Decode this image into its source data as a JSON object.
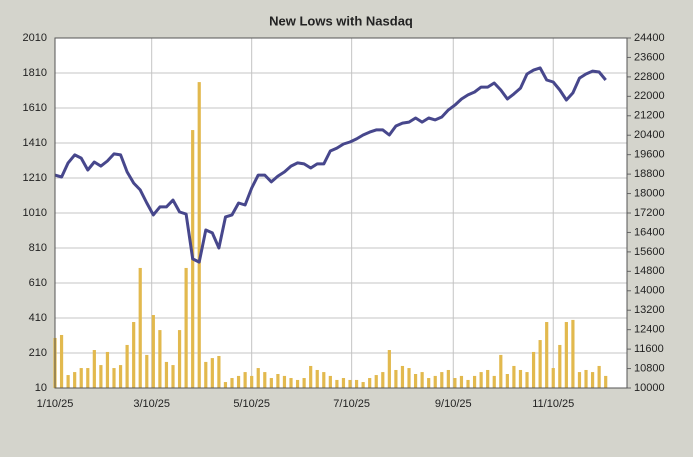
{
  "chart_data": {
    "type": "combo",
    "title": "New Lows with Nasdaq",
    "x": [
      "2025-01-10",
      "2025-01-14",
      "2025-01-18",
      "2025-01-22",
      "2025-01-26",
      "2025-01-30",
      "2025-02-03",
      "2025-02-07",
      "2025-02-11",
      "2025-02-15",
      "2025-02-19",
      "2025-02-23",
      "2025-02-27",
      "2025-03-03",
      "2025-03-07",
      "2025-03-11",
      "2025-03-15",
      "2025-03-19",
      "2025-03-23",
      "2025-03-27",
      "2025-03-31",
      "2025-04-04",
      "2025-04-08",
      "2025-04-12",
      "2025-04-16",
      "2025-04-20",
      "2025-04-24",
      "2025-04-28",
      "2025-05-02",
      "2025-05-06",
      "2025-05-10",
      "2025-05-14",
      "2025-05-18",
      "2025-05-22",
      "2025-05-26",
      "2025-05-30",
      "2025-06-03",
      "2025-06-07",
      "2025-06-11",
      "2025-06-15",
      "2025-06-19",
      "2025-06-23",
      "2025-06-27",
      "2025-07-01",
      "2025-07-05",
      "2025-07-09",
      "2025-07-13",
      "2025-07-17",
      "2025-07-21",
      "2025-07-25",
      "2025-07-29",
      "2025-08-02",
      "2025-08-06",
      "2025-08-10",
      "2025-08-14",
      "2025-08-18",
      "2025-08-22",
      "2025-08-26",
      "2025-08-30",
      "2025-09-03",
      "2025-09-07",
      "2025-09-11",
      "2025-09-15",
      "2025-09-19",
      "2025-09-23",
      "2025-09-27",
      "2025-10-01",
      "2025-10-05",
      "2025-10-09",
      "2025-10-13",
      "2025-10-17",
      "2025-10-21",
      "2025-10-25",
      "2025-10-29",
      "2025-11-02",
      "2025-11-06",
      "2025-11-10",
      "2025-11-14",
      "2025-11-18",
      "2025-11-22",
      "2025-11-26",
      "2025-11-30",
      "2025-12-04",
      "2025-12-08",
      "2025-12-12"
    ],
    "series": [
      {
        "type": "bar",
        "color": "#e2b94e",
        "values": [
          296,
          313,
          84,
          101,
          124,
          124,
          227,
          141,
          216,
          124,
          141,
          256,
          387,
          696,
          199,
          427,
          341,
          159,
          141,
          341,
          696,
          1484,
          1758,
          159,
          181,
          193,
          44,
          67,
          79,
          101,
          79,
          124,
          101,
          67,
          90,
          79,
          67,
          56,
          67,
          136,
          113,
          101,
          79,
          56,
          67,
          56,
          56,
          44,
          67,
          84,
          101,
          227,
          113,
          136,
          124,
          90,
          101,
          67,
          79,
          101,
          113,
          67,
          79,
          56,
          79,
          101,
          113,
          79,
          199,
          90,
          136,
          113,
          101,
          216,
          284,
          387,
          124,
          256,
          387,
          399,
          101,
          113,
          101,
          136,
          79
        ]
      },
      {
        "type": "line",
        "axis": "y2",
        "color": "#47478c",
        "values": [
          18760,
          18680,
          19260,
          19590,
          19460,
          18970,
          19300,
          19130,
          19340,
          19630,
          19590,
          18890,
          18430,
          18150,
          17610,
          17120,
          17450,
          17450,
          17730,
          17240,
          17160,
          15310,
          15180,
          16500,
          16380,
          15760,
          17040,
          17120,
          17610,
          17530,
          18230,
          18760,
          18760,
          18480,
          18720,
          18890,
          19130,
          19260,
          19220,
          19050,
          19220,
          19220,
          19750,
          19870,
          20040,
          20120,
          20250,
          20410,
          20530,
          20620,
          20620,
          20410,
          20780,
          20900,
          20940,
          21110,
          20940,
          21110,
          21030,
          21150,
          21440,
          21640,
          21890,
          22060,
          22180,
          22380,
          22380,
          22550,
          22260,
          21890,
          22100,
          22340,
          22920,
          23080,
          23170,
          22670,
          22590,
          22260,
          21850,
          22140,
          22750,
          22920,
          23040,
          23000,
          22670
        ]
      }
    ],
    "xlim": [
      "2025-01-10",
      "2025-12-25"
    ],
    "xticks": [
      {
        "value": "2025-01-10",
        "label": "1/10/25"
      },
      {
        "value": "2025-03-10",
        "label": "3/10/25"
      },
      {
        "value": "2025-05-10",
        "label": "5/10/25"
      },
      {
        "value": "2025-07-10",
        "label": "7/10/25"
      },
      {
        "value": "2025-09-10",
        "label": "9/10/25"
      },
      {
        "value": "2025-11-10",
        "label": "11/10/25"
      }
    ],
    "ylim": [
      10,
      2010
    ],
    "yticks": [
      10,
      210,
      410,
      610,
      810,
      1010,
      1210,
      1410,
      1610,
      1810,
      2010
    ],
    "y2lim": [
      10000,
      24400
    ],
    "y2ticks": [
      10000,
      10800,
      11600,
      12400,
      13200,
      14000,
      14800,
      15600,
      16400,
      17200,
      18000,
      18800,
      19600,
      20400,
      21200,
      22000,
      22800,
      23600,
      24400
    ],
    "grid": true
  }
}
